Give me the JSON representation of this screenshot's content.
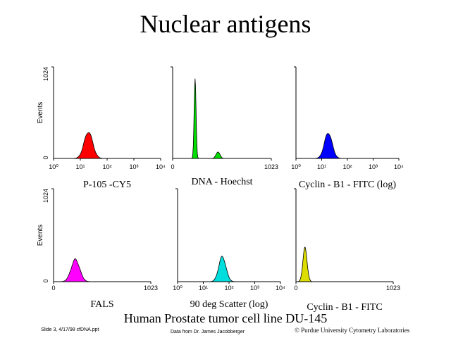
{
  "title": "Nuclear antigens",
  "caption": "Human Prostate tumor cell line DU-145",
  "footer": {
    "left": "Slide 3, 4/17/98 cfDNA.ppt",
    "center": "Data from Dr. James Jacobberger",
    "right": "© Purdue University Cytometry Laboratories"
  },
  "chart_data": [
    {
      "type": "area",
      "xlabel": "P-105 -CY5",
      "ylabel": "Events",
      "ytick_labels": [
        "0",
        "1024"
      ],
      "xscale": "log",
      "xtick_labels": [
        "10⁰",
        "10¹",
        "10²",
        "10³",
        "10⁴"
      ],
      "color": "#ff0000",
      "peaks": [
        {
          "x": 20,
          "height": 0.28,
          "width": 0.16
        }
      ]
    },
    {
      "type": "area",
      "xlabel": "DNA - Hoechst",
      "ylabel": "",
      "ytick_labels": [],
      "xscale": "linear",
      "xlim": [
        0,
        1023
      ],
      "xtick_labels": [
        "0",
        "1023"
      ],
      "color": "#00dd00",
      "peaks": [
        {
          "x": 233,
          "height": 0.82,
          "width": 10
        },
        {
          "x": 470,
          "height": 0.07,
          "width": 20
        }
      ]
    },
    {
      "type": "area",
      "xlabel": "Cyclin - B1 - FITC (log)",
      "ylabel": "",
      "ytick_labels": [],
      "xscale": "log",
      "xtick_labels": [
        "10⁰",
        "10¹",
        "10²",
        "10³",
        "10⁴"
      ],
      "color": "#0000ff",
      "peaks": [
        {
          "x": 18,
          "height": 0.27,
          "width": 0.15
        }
      ]
    },
    {
      "type": "area",
      "xlabel": "FALS",
      "ylabel": "Events",
      "ytick_labels": [
        "0",
        "1024"
      ],
      "xscale": "linear",
      "xlim": [
        0,
        1023
      ],
      "xtick_labels": [
        "0",
        "1023"
      ],
      "color": "#ff00ff",
      "peaks": [
        {
          "x": 230,
          "height": 0.23,
          "width": 45
        }
      ]
    },
    {
      "type": "area",
      "xlabel": "90 deg Scatter (log)",
      "ylabel": "",
      "ytick_labels": [],
      "xscale": "log",
      "xtick_labels": [
        "10⁰",
        "10¹",
        "10²",
        "10³",
        "10⁴"
      ],
      "color": "#00dddd",
      "peaks": [
        {
          "x": 55,
          "height": 0.26,
          "width": 0.14
        }
      ]
    },
    {
      "type": "area",
      "xlabel": "Cyclin - B1 - FITC",
      "ylabel": "",
      "ytick_labels": [],
      "xscale": "linear",
      "xlim": [
        0,
        1023
      ],
      "xtick_labels": [
        "0",
        "1023"
      ],
      "color": "#dddd00",
      "peaks": [
        {
          "x": 95,
          "height": 0.35,
          "width": 22
        }
      ]
    }
  ]
}
